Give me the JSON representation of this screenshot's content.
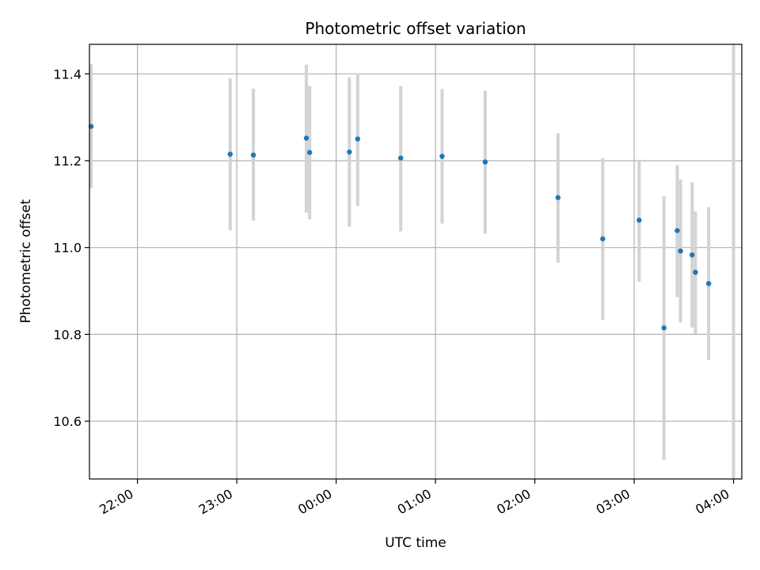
{
  "chart_data": {
    "type": "scatter",
    "title": "Photometric offset variation",
    "xlabel": "UTC time",
    "ylabel": "Photometric offset",
    "x_axis": "time",
    "x_range": [
      "21:31",
      "04:05"
    ],
    "ylim": [
      10.467,
      11.468
    ],
    "x_ticks": [
      "22:00",
      "23:00",
      "00:00",
      "01:00",
      "02:00",
      "03:00",
      "04:00"
    ],
    "y_ticks": [
      "10.6",
      "10.8",
      "11.0",
      "11.2",
      "11.4"
    ],
    "grid": true,
    "legend": "none",
    "colors": {
      "point": "#1f77b4",
      "errorbar": "#d3d3d3",
      "grid": "#b0b0b0"
    },
    "points": [
      {
        "x": "21:32",
        "y": 11.279,
        "err_low": 11.137,
        "err_high": 11.422
      },
      {
        "x": "22:56",
        "y": 11.215,
        "err_low": 11.04,
        "err_high": 11.39
      },
      {
        "x": "23:10",
        "y": 11.213,
        "err_low": 11.062,
        "err_high": 11.366
      },
      {
        "x": "23:42",
        "y": 11.252,
        "err_low": 11.08,
        "err_high": 11.421
      },
      {
        "x": "23:44",
        "y": 11.219,
        "err_low": 11.065,
        "err_high": 11.372
      },
      {
        "x": "00:08",
        "y": 11.22,
        "err_low": 11.048,
        "err_high": 11.392
      },
      {
        "x": "00:13",
        "y": 11.25,
        "err_low": 11.096,
        "err_high": 11.401
      },
      {
        "x": "00:39",
        "y": 11.206,
        "err_low": 11.037,
        "err_high": 11.372
      },
      {
        "x": "01:04",
        "y": 11.21,
        "err_low": 11.055,
        "err_high": 11.365
      },
      {
        "x": "01:30",
        "y": 11.197,
        "err_low": 11.032,
        "err_high": 11.361
      },
      {
        "x": "02:14",
        "y": 11.115,
        "err_low": 10.965,
        "err_high": 11.263
      },
      {
        "x": "02:41",
        "y": 11.02,
        "err_low": 10.833,
        "err_high": 11.206
      },
      {
        "x": "03:03",
        "y": 11.063,
        "err_low": 10.921,
        "err_high": 11.202
      },
      {
        "x": "03:18",
        "y": 10.815,
        "err_low": 10.511,
        "err_high": 11.118
      },
      {
        "x": "03:26",
        "y": 11.039,
        "err_low": 10.886,
        "err_high": 11.19
      },
      {
        "x": "03:28",
        "y": 10.992,
        "err_low": 10.827,
        "err_high": 11.157
      },
      {
        "x": "03:35",
        "y": 10.983,
        "err_low": 10.816,
        "err_high": 11.15
      },
      {
        "x": "03:37",
        "y": 10.943,
        "err_low": 10.801,
        "err_high": 11.083
      },
      {
        "x": "03:45",
        "y": 10.917,
        "err_low": 10.741,
        "err_high": 11.093
      },
      {
        "x": "04:00",
        "y": null,
        "err_low": null,
        "err_high": 11.466
      }
    ]
  }
}
